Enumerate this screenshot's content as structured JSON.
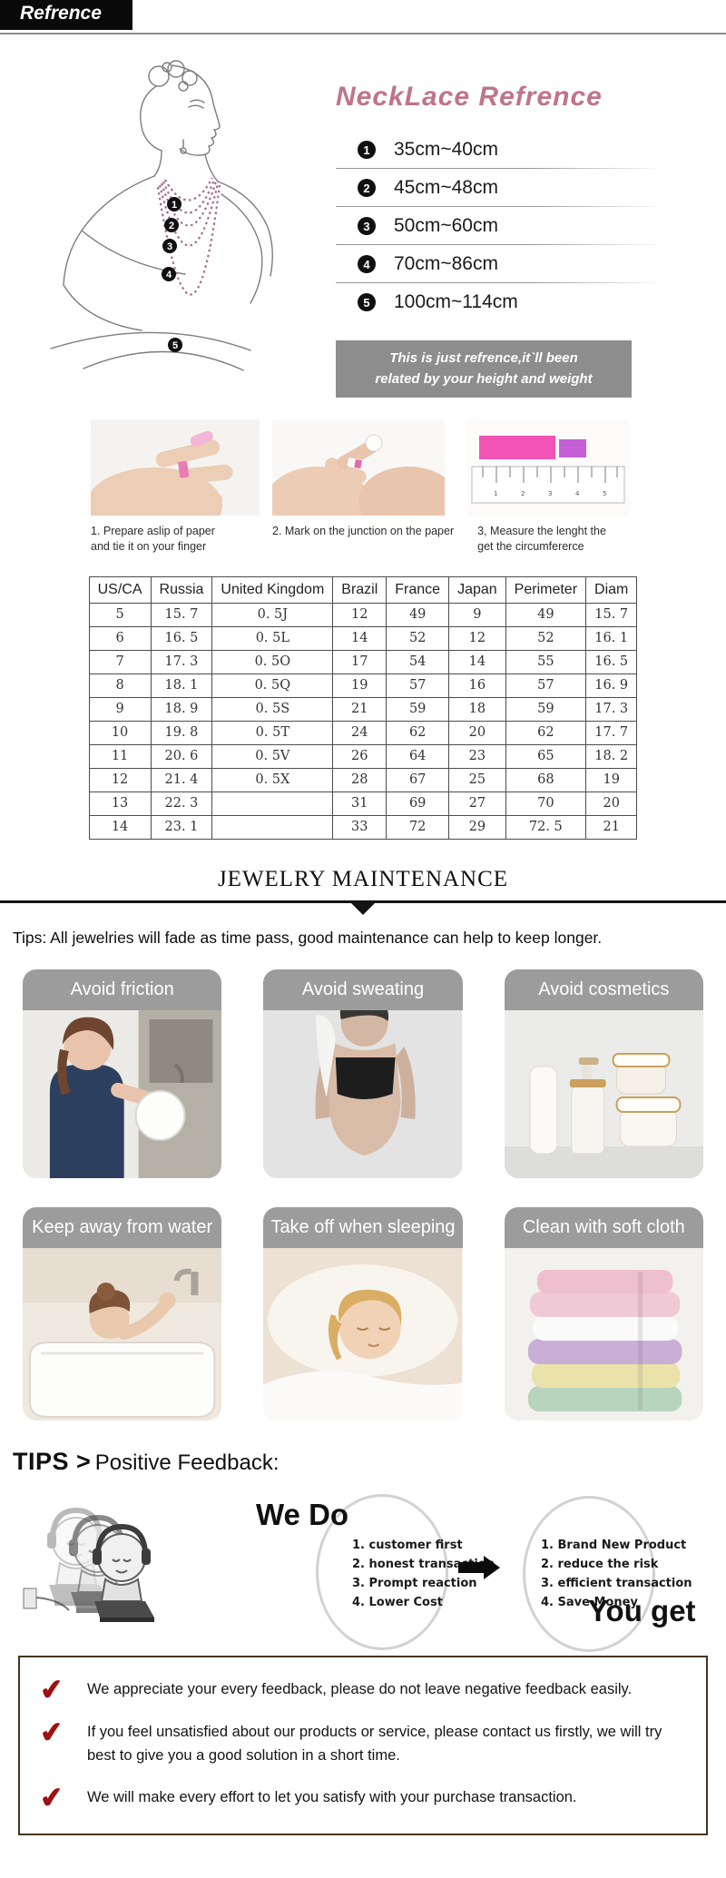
{
  "page": {
    "header_title": "Refrence"
  },
  "necklace": {
    "title": "NeckLace Refrence",
    "items": [
      {
        "num": "1",
        "label": "35cm~40cm"
      },
      {
        "num": "2",
        "label": "45cm~48cm"
      },
      {
        "num": "3",
        "label": "50cm~60cm"
      },
      {
        "num": "4",
        "label": "70cm~86cm"
      },
      {
        "num": "5",
        "label": "100cm~114cm"
      }
    ],
    "note_line1": "This is just refrence,it`ll been",
    "note_line2": "related by your height and weight"
  },
  "ring_guide": {
    "steps": [
      "1. Prepare aslip of paper and tie it on your finger",
      "2. Mark on the junction on the paper",
      "3, Measure the lenght the get the circumfererce"
    ]
  },
  "size_table": {
    "headers": [
      "US/CA",
      "Russia",
      "United Kingdom",
      "Brazil",
      "France",
      "Japan",
      "Perimeter",
      "Diam"
    ],
    "rows": [
      [
        "5",
        "15. 7",
        "0. 5J",
        "12",
        "49",
        "9",
        "49",
        "15. 7"
      ],
      [
        "6",
        "16. 5",
        "0. 5L",
        "14",
        "52",
        "12",
        "52",
        "16. 1"
      ],
      [
        "7",
        "17. 3",
        "0. 5O",
        "17",
        "54",
        "14",
        "55",
        "16. 5"
      ],
      [
        "8",
        "18. 1",
        "0. 5Q",
        "19",
        "57",
        "16",
        "57",
        "16. 9"
      ],
      [
        "9",
        "18. 9",
        "0. 5S",
        "21",
        "59",
        "18",
        "59",
        "17. 3"
      ],
      [
        "10",
        "19. 8",
        "0. 5T",
        "24",
        "62",
        "20",
        "62",
        "17. 7"
      ],
      [
        "11",
        "20. 6",
        "0. 5V",
        "26",
        "64",
        "23",
        "65",
        "18. 2"
      ],
      [
        "12",
        "21. 4",
        "0. 5X",
        "28",
        "67",
        "25",
        "68",
        "19"
      ],
      [
        "13",
        "22. 3",
        "",
        "31",
        "69",
        "27",
        "70",
        "20"
      ],
      [
        "14",
        "23. 1",
        "",
        "33",
        "72",
        "29",
        "72. 5",
        "21"
      ]
    ]
  },
  "maintenance": {
    "title": "JEWELRY MAINTENANCE",
    "tips": "Tips: All jewelries will fade as time pass, good maintenance can help to keep longer.",
    "cards": [
      {
        "label": "Avoid friction"
      },
      {
        "label": "Avoid sweating"
      },
      {
        "label": "Avoid cosmetics"
      },
      {
        "label": "Keep away from water"
      },
      {
        "label": "Take off when sleeping"
      },
      {
        "label": "Clean with soft cloth"
      }
    ]
  },
  "feedback": {
    "heading_bold": "TIPS >",
    "heading_rest": " Positive Feedback:",
    "we_do_title": "We Do",
    "you_get_title": "You get",
    "we_do_items": [
      "1. customer first",
      "2. honest transaction",
      "3. Prompt reaction",
      "4. Lower Cost"
    ],
    "you_get_items": [
      "1. Brand New Product",
      "2. reduce the risk",
      "3. efficient transaction",
      "4. Save Money"
    ],
    "notes": [
      "We appreciate your every feedback, please do not leave negative feedback easily.",
      "If you feel unsatisfied about our products or service, please contact us firstly, we will try best to give you a good solution in a short time.",
      "We will make every effort to let you satisfy with your purchase transaction."
    ]
  },
  "colors": {
    "accent_pink": "#bf7489",
    "banner_gray": "#9c9c9c",
    "note_gray": "#8d8d8d",
    "check_red": "#9c1111",
    "box_border": "#46351f",
    "header_black": "#0a0a0a"
  }
}
